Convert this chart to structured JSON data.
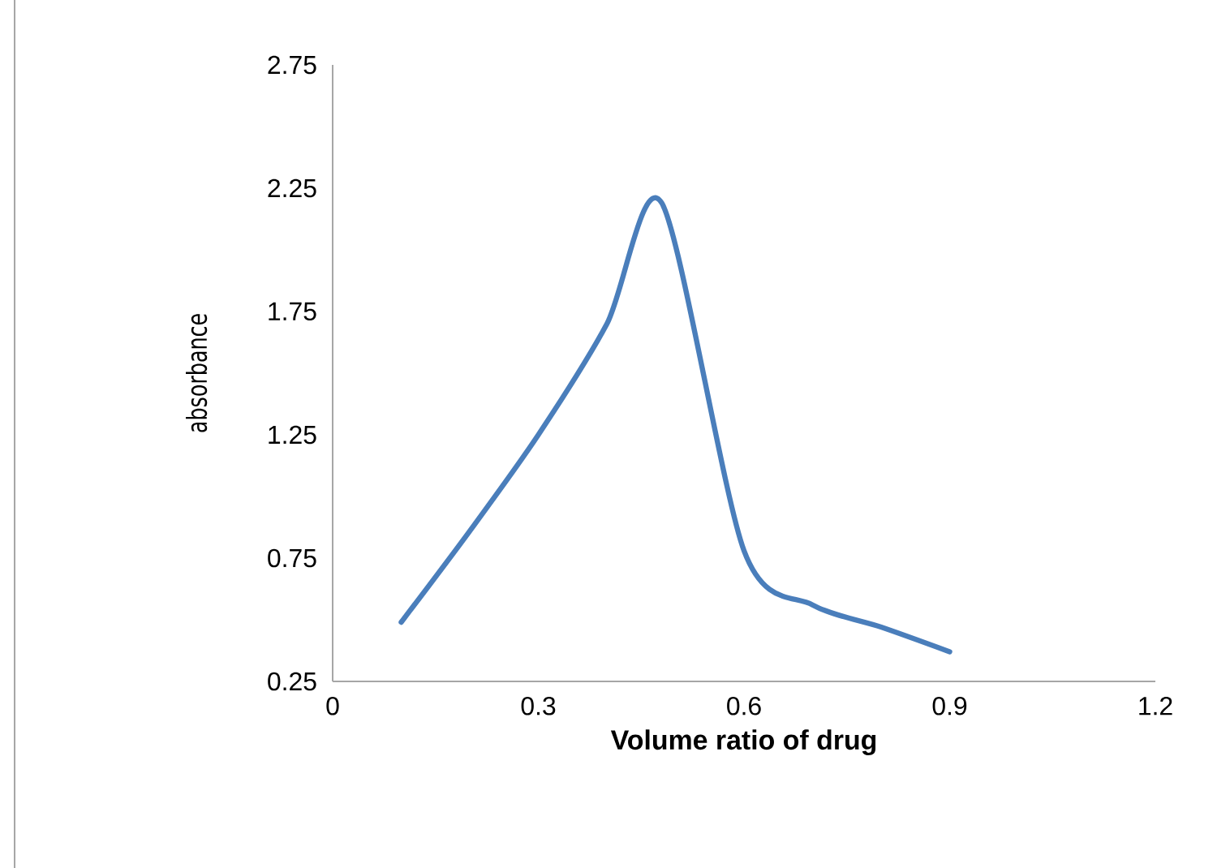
{
  "chart_data": {
    "type": "line",
    "xlabel": "Volume  ratio of drug",
    "ylabel": "absorbance",
    "series": [
      {
        "color": "#4a7ebb",
        "x": [
          0.1,
          0.2,
          0.3,
          0.4,
          0.48,
          0.6,
          0.7,
          0.8,
          0.9
        ],
        "values": [
          0.49,
          0.86,
          1.25,
          1.7,
          2.19,
          0.78,
          0.56,
          0.47,
          0.37
        ]
      }
    ],
    "xlim": [
      0,
      1.2
    ],
    "xticks": [
      0,
      0.3,
      0.6,
      0.9,
      1.2
    ],
    "ylim": [
      0.25,
      2.75
    ],
    "yticks": [
      0.25,
      0.75,
      1.25,
      1.75,
      2.25,
      2.75
    ],
    "grid": false,
    "marker": "none",
    "line_style": "solid"
  }
}
